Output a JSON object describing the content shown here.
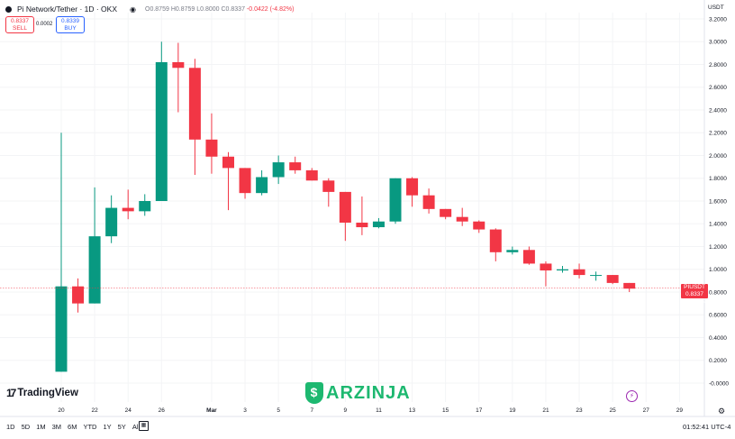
{
  "legend": {
    "title": "Pi Network/Tether · 1D · OKX",
    "ohlc_o": "O0.8759",
    "ohlc_h": "H0.8759",
    "ohlc_l": "L0.8000",
    "ohlc_c": "C0.8337",
    "change": "-0.0422 (-4.82%)"
  },
  "trade": {
    "sell_price": "0.8337",
    "sell_label": "SELL",
    "spread": "0.0002",
    "buy_price": "0.8339",
    "buy_label": "BUY"
  },
  "currency": "USDT",
  "price_tag": {
    "symbol": "PIUSDT",
    "price": "0.8337",
    "countdown": "18:07:19"
  },
  "brand": "TradingView",
  "watermark": "ARZINJA",
  "toolbar": {
    "ranges": [
      "1D",
      "5D",
      "1M",
      "3M",
      "6M",
      "YTD",
      "1Y",
      "5Y",
      "All"
    ],
    "clock": "01:52:41 UTC-4"
  },
  "colors": {
    "up": "#089981",
    "down": "#f23645",
    "watermark": "#1db870"
  },
  "chart_data": {
    "type": "candlestick",
    "y_ticks": [
      "3.2000",
      "3.0000",
      "2.8000",
      "2.6000",
      "2.4000",
      "2.2000",
      "2.0000",
      "1.8000",
      "1.6000",
      "1.4000",
      "1.2000",
      "1.0000",
      "0.8000",
      "0.6000",
      "0.4000",
      "0.2000",
      "-0.0000"
    ],
    "ylim": [
      -0.02,
      3.2
    ],
    "x_ticks": [
      {
        "label": "20",
        "i": 0
      },
      {
        "label": "22",
        "i": 2
      },
      {
        "label": "24",
        "i": 4
      },
      {
        "label": "26",
        "i": 6
      },
      {
        "label": "Mar",
        "i": 9,
        "bold": true
      },
      {
        "label": "3",
        "i": 11
      },
      {
        "label": "5",
        "i": 13
      },
      {
        "label": "7",
        "i": 15
      },
      {
        "label": "9",
        "i": 17
      },
      {
        "label": "11",
        "i": 19
      },
      {
        "label": "13",
        "i": 21
      },
      {
        "label": "15",
        "i": 23
      },
      {
        "label": "17",
        "i": 25
      },
      {
        "label": "19",
        "i": 27
      },
      {
        "label": "21",
        "i": 29
      },
      {
        "label": "23",
        "i": 31
      },
      {
        "label": "25",
        "i": 33
      },
      {
        "label": "27",
        "i": 35
      },
      {
        "label": "29",
        "i": 37
      }
    ],
    "candles": [
      {
        "o": 0.1,
        "h": 2.2,
        "l": 0.1,
        "c": 0.85
      },
      {
        "o": 0.85,
        "h": 0.92,
        "l": 0.62,
        "c": 0.7
      },
      {
        "o": 0.7,
        "h": 1.72,
        "l": 0.7,
        "c": 1.29
      },
      {
        "o": 1.29,
        "h": 1.65,
        "l": 1.23,
        "c": 1.54
      },
      {
        "o": 1.54,
        "h": 1.7,
        "l": 1.44,
        "c": 1.51
      },
      {
        "o": 1.51,
        "h": 1.66,
        "l": 1.47,
        "c": 1.6
      },
      {
        "o": 1.6,
        "h": 3.0,
        "l": 1.6,
        "c": 2.82
      },
      {
        "o": 2.82,
        "h": 2.99,
        "l": 2.38,
        "c": 2.77
      },
      {
        "o": 2.77,
        "h": 2.85,
        "l": 1.83,
        "c": 2.14
      },
      {
        "o": 2.14,
        "h": 2.37,
        "l": 1.84,
        "c": 1.99
      },
      {
        "o": 1.99,
        "h": 2.03,
        "l": 1.52,
        "c": 1.89
      },
      {
        "o": 1.89,
        "h": 1.89,
        "l": 1.62,
        "c": 1.67
      },
      {
        "o": 1.67,
        "h": 1.87,
        "l": 1.65,
        "c": 1.81
      },
      {
        "o": 1.81,
        "h": 2.0,
        "l": 1.75,
        "c": 1.94
      },
      {
        "o": 1.94,
        "h": 1.99,
        "l": 1.84,
        "c": 1.87
      },
      {
        "o": 1.87,
        "h": 1.89,
        "l": 1.78,
        "c": 1.78
      },
      {
        "o": 1.78,
        "h": 1.8,
        "l": 1.55,
        "c": 1.68
      },
      {
        "o": 1.68,
        "h": 1.68,
        "l": 1.25,
        "c": 1.41
      },
      {
        "o": 1.41,
        "h": 1.64,
        "l": 1.3,
        "c": 1.37
      },
      {
        "o": 1.37,
        "h": 1.45,
        "l": 1.36,
        "c": 1.42
      },
      {
        "o": 1.42,
        "h": 1.8,
        "l": 1.4,
        "c": 1.8
      },
      {
        "o": 1.8,
        "h": 1.81,
        "l": 1.55,
        "c": 1.65
      },
      {
        "o": 1.65,
        "h": 1.71,
        "l": 1.49,
        "c": 1.53
      },
      {
        "o": 1.53,
        "h": 1.53,
        "l": 1.44,
        "c": 1.46
      },
      {
        "o": 1.46,
        "h": 1.54,
        "l": 1.38,
        "c": 1.42
      },
      {
        "o": 1.42,
        "h": 1.43,
        "l": 1.32,
        "c": 1.35
      },
      {
        "o": 1.35,
        "h": 1.36,
        "l": 1.07,
        "c": 1.15
      },
      {
        "o": 1.15,
        "h": 1.2,
        "l": 1.13,
        "c": 1.17
      },
      {
        "o": 1.17,
        "h": 1.2,
        "l": 1.04,
        "c": 1.05
      },
      {
        "o": 1.05,
        "h": 1.07,
        "l": 0.85,
        "c": 0.99
      },
      {
        "o": 0.99,
        "h": 1.03,
        "l": 0.97,
        "c": 1.0
      },
      {
        "o": 1.0,
        "h": 1.05,
        "l": 0.92,
        "c": 0.95
      },
      {
        "o": 0.95,
        "h": 0.98,
        "l": 0.9,
        "c": 0.95
      },
      {
        "o": 0.95,
        "h": 0.95,
        "l": 0.87,
        "c": 0.88
      },
      {
        "o": 0.88,
        "h": 0.88,
        "l": 0.8,
        "c": 0.83
      }
    ],
    "last_price": 0.8337
  }
}
